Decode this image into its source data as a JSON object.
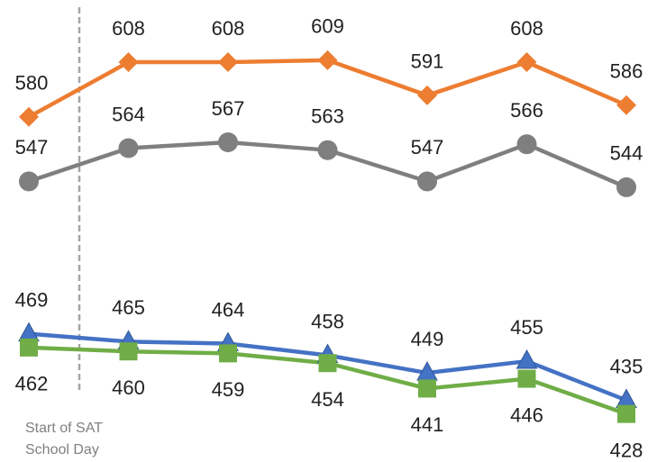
{
  "chart_data": {
    "type": "line",
    "categories": [
      null,
      null,
      null,
      null,
      null,
      null,
      null
    ],
    "series": [
      {
        "color": "#ed7d31",
        "values": [
          580,
          608,
          608,
          609,
          591,
          608,
          586
        ]
      },
      {
        "color": "#7f7f7f",
        "values": [
          547,
          564,
          567,
          563,
          547,
          566,
          544
        ]
      },
      {
        "color": "#4472c4",
        "values": [
          469,
          465,
          464,
          458,
          449,
          455,
          435
        ]
      },
      {
        "color": "#70ad47",
        "values": [
          462,
          460,
          459,
          454,
          441,
          446,
          428
        ]
      }
    ],
    "ylim": [
      420,
      620
    ],
    "annotation": [
      "Start of SAT",
      "School Day"
    ]
  }
}
